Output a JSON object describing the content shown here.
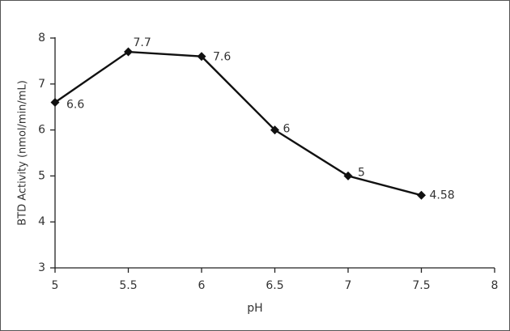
{
  "chart_data": {
    "type": "line",
    "x_label": "pH",
    "y_label": "BTD Activity (nmol/min/mL)",
    "x": [
      5,
      5.5,
      6,
      6.5,
      7,
      7.5
    ],
    "series": [
      {
        "color": "#111111",
        "values": [
          6.6,
          7.7,
          7.6,
          6,
          5,
          4.58
        ]
      }
    ],
    "xlim": [
      5,
      8
    ],
    "xticks": [
      5,
      5.5,
      6,
      6.5,
      7,
      7.5,
      8
    ],
    "ylim": [
      3,
      8
    ],
    "yticks": [
      3,
      4,
      5,
      6,
      7,
      8
    ],
    "grid": false
  }
}
